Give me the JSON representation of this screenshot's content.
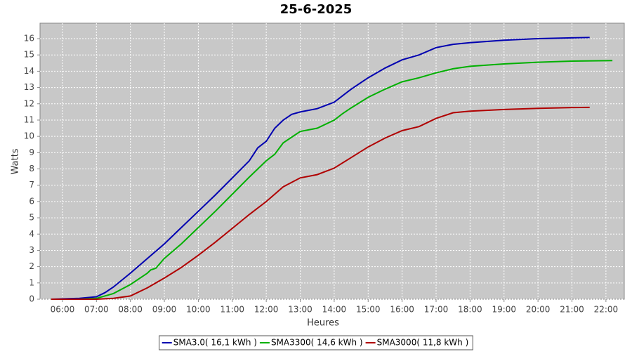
{
  "chart_data": {
    "type": "line",
    "title": "25-6-2025",
    "x_label": "Heures",
    "y_label": "Watts",
    "xlim": [
      5.34,
      22.54
    ],
    "ylim": [
      0,
      16.95
    ],
    "xticks": [
      {
        "value": 6,
        "label": "06:00"
      },
      {
        "value": 7,
        "label": "07:00"
      },
      {
        "value": 8,
        "label": "08:00"
      },
      {
        "value": 9,
        "label": "09:00"
      },
      {
        "value": 10,
        "label": "10:00"
      },
      {
        "value": 11,
        "label": "11:00"
      },
      {
        "value": 12,
        "label": "12:00"
      },
      {
        "value": 13,
        "label": "13:00"
      },
      {
        "value": 14,
        "label": "14:00"
      },
      {
        "value": 15,
        "label": "15:00"
      },
      {
        "value": 16,
        "label": "16:00"
      },
      {
        "value": 17,
        "label": "17:00"
      },
      {
        "value": 18,
        "label": "18:00"
      },
      {
        "value": 19,
        "label": "19:00"
      },
      {
        "value": 20,
        "label": "20:00"
      },
      {
        "value": 21,
        "label": "21:00"
      },
      {
        "value": 22,
        "label": "22:00"
      }
    ],
    "yticks": [
      0,
      1,
      2,
      3,
      4,
      5,
      6,
      7,
      8,
      9,
      10,
      11,
      12,
      13,
      14,
      15,
      16
    ],
    "grid": true,
    "legend": "bottom",
    "series": [
      {
        "name": "SMA3.0( 16,1 kWh )",
        "color": "#0000b0",
        "x": [
          5.67,
          6.5,
          7,
          7.25,
          7.5,
          8,
          8.5,
          9,
          9.5,
          10,
          10.5,
          11,
          11.5,
          11.75,
          12,
          12.25,
          12.5,
          12.75,
          13,
          13.5,
          13.75,
          14,
          14.25,
          14.5,
          15,
          15.5,
          16,
          16.5,
          17,
          17.5,
          18,
          19,
          20,
          21,
          21.52
        ],
        "values": [
          0,
          0.05,
          0.15,
          0.4,
          0.75,
          1.6,
          2.5,
          3.4,
          4.4,
          5.4,
          6.4,
          7.45,
          8.5,
          9.3,
          9.7,
          10.5,
          11.0,
          11.35,
          11.5,
          11.7,
          11.9,
          12.1,
          12.5,
          12.9,
          13.6,
          14.2,
          14.7,
          15.0,
          15.45,
          15.65,
          15.75,
          15.9,
          16.0,
          16.05,
          16.07
        ]
      },
      {
        "name": "SMA3300( 14,6 kWh )",
        "color": "#00b000",
        "x": [
          5.67,
          6.5,
          7,
          7.5,
          8,
          8.5,
          8.6,
          8.75,
          9,
          9.5,
          10,
          10.5,
          11,
          11.5,
          12,
          12.25,
          12.5,
          13,
          13.5,
          14,
          14.25,
          14.5,
          15,
          15.5,
          16,
          16.5,
          17,
          17.5,
          18,
          19,
          20,
          21,
          22.19
        ],
        "values": [
          0,
          0,
          0.05,
          0.35,
          0.9,
          1.6,
          1.8,
          1.9,
          2.5,
          3.4,
          4.4,
          5.4,
          6.45,
          7.5,
          8.5,
          8.9,
          9.6,
          10.3,
          10.5,
          11.0,
          11.4,
          11.75,
          12.4,
          12.9,
          13.35,
          13.6,
          13.9,
          14.15,
          14.3,
          14.45,
          14.55,
          14.62,
          14.65
        ]
      },
      {
        "name": "SMA3000( 11,8 kWh )",
        "color": "#b00000",
        "x": [
          5.67,
          7,
          7.5,
          8,
          8.5,
          9,
          9.5,
          10,
          10.5,
          11,
          11.5,
          12,
          12.5,
          13,
          13.5,
          14,
          14.5,
          15,
          15.5,
          16,
          16.5,
          17,
          17.5,
          18,
          19,
          20,
          21,
          21.52
        ],
        "values": [
          0,
          0,
          0.05,
          0.2,
          0.7,
          1.3,
          1.95,
          2.7,
          3.5,
          4.35,
          5.2,
          6.0,
          6.9,
          7.45,
          7.65,
          8.05,
          8.7,
          9.35,
          9.9,
          10.35,
          10.6,
          11.1,
          11.45,
          11.55,
          11.65,
          11.72,
          11.77,
          11.78
        ]
      }
    ]
  }
}
